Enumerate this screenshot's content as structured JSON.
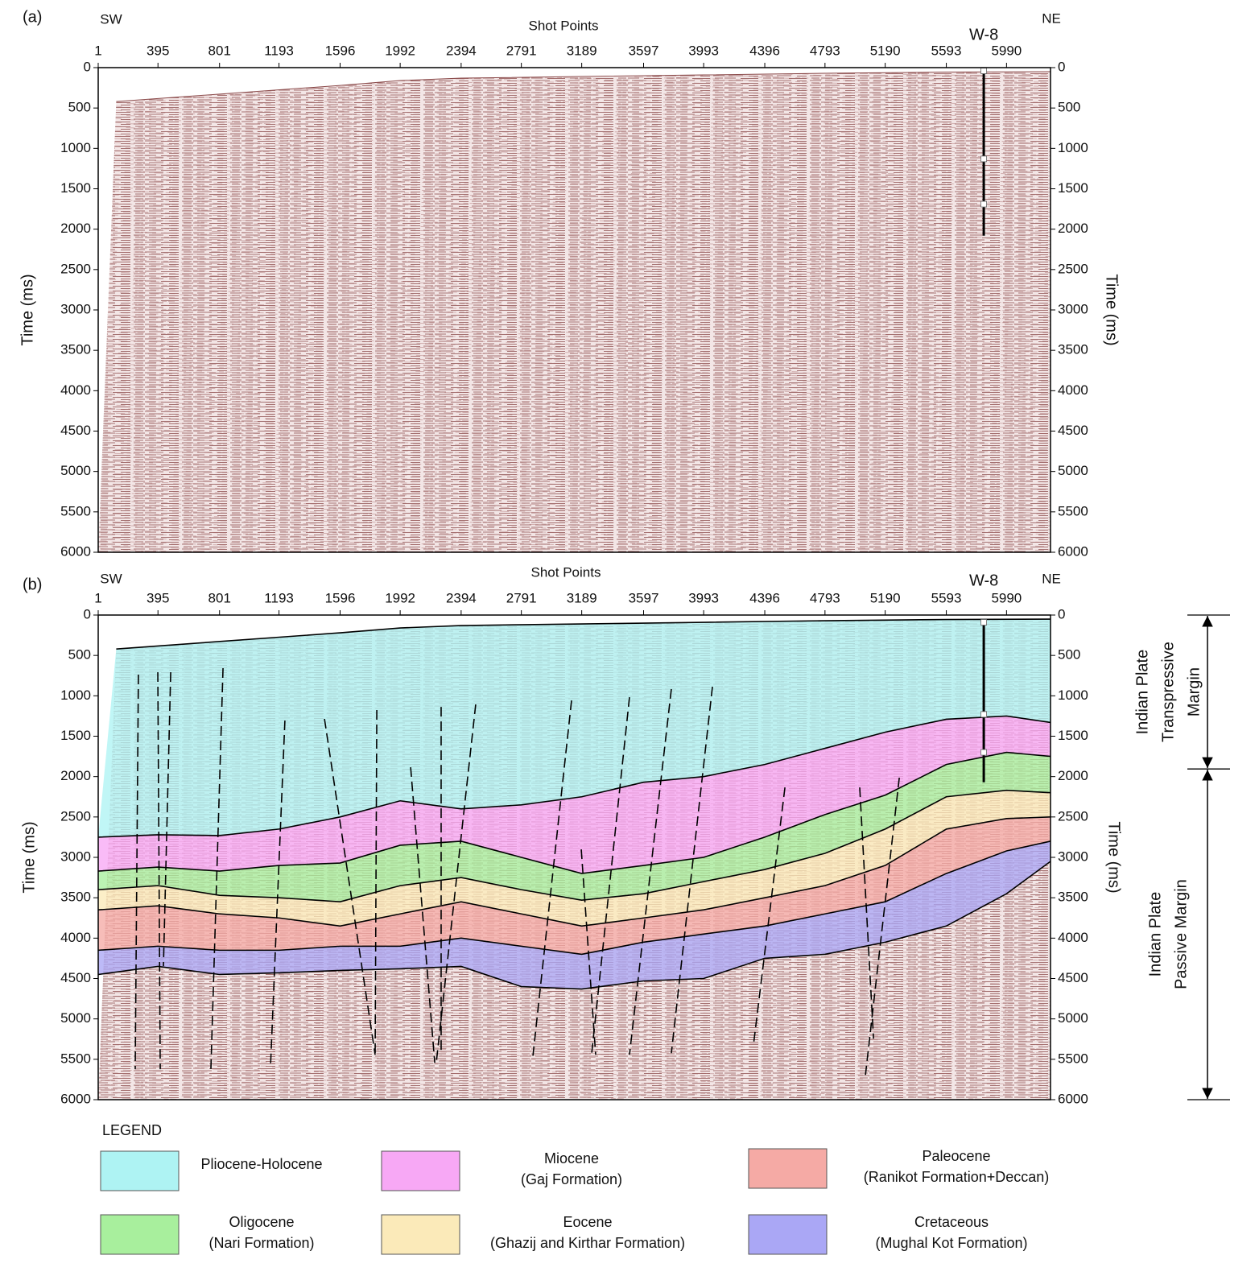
{
  "chart_data": [
    {
      "type": "seismic-section",
      "panel_label": "(a)",
      "left_label": "SW",
      "right_label": "NE",
      "x_label": "Shot Points",
      "y_label": "Time (ms)",
      "y2_label": "Time (ms)",
      "xlim": [
        1,
        6280
      ],
      "xticks": [
        1,
        395,
        801,
        1193,
        1596,
        1992,
        2394,
        2791,
        3189,
        3597,
        3993,
        4396,
        4793,
        5190,
        5593,
        5990
      ],
      "ylim": [
        0,
        6000
      ],
      "y_inverted": true,
      "yticks": [
        0,
        500,
        1000,
        1500,
        2000,
        2500,
        3000,
        3500,
        4000,
        4500,
        5000,
        5500,
        6000
      ],
      "y2ticks": [
        0,
        500,
        1000,
        1500,
        2000,
        2500,
        3000,
        3500,
        4000,
        4500,
        5000,
        5500,
        6000
      ],
      "seabed": {
        "x": [
          120,
          1596,
          1992,
          2394,
          3189,
          3993,
          4793,
          5593,
          6280
        ],
        "values": [
          420,
          220,
          160,
          130,
          110,
          90,
          70,
          55,
          50
        ]
      },
      "well": {
        "name": "W-8",
        "x": 5840,
        "top": 40,
        "bottom": 2080,
        "markers": [
          40,
          1130,
          1690
        ]
      }
    },
    {
      "type": "seismic-section",
      "panel_label": "(b)",
      "left_label": "SW",
      "right_label": "NE",
      "x_label": "Shot Points",
      "y_label": "Time (ms)",
      "y2_label": "Time (ms)",
      "xlim": [
        1,
        6280
      ],
      "xticks": [
        1,
        395,
        801,
        1193,
        1596,
        1992,
        2394,
        2791,
        3189,
        3597,
        3993,
        4396,
        4793,
        5190,
        5593,
        5990
      ],
      "ylim": [
        0,
        6000
      ],
      "y_inverted": true,
      "yticks": [
        0,
        500,
        1000,
        1500,
        2000,
        2500,
        3000,
        3500,
        4000,
        4500,
        5000,
        5500,
        6000
      ],
      "y2ticks": [
        0,
        500,
        1000,
        1500,
        2000,
        2500,
        3000,
        3500,
        4000,
        4500,
        5000,
        5500,
        6000
      ],
      "seabed": {
        "x": [
          120,
          1596,
          1992,
          2394,
          3189,
          3993,
          4793,
          5593,
          6280
        ],
        "values": [
          420,
          220,
          160,
          130,
          110,
          90,
          70,
          55,
          50
        ]
      },
      "well": {
        "name": "W-8",
        "x": 5840,
        "top": 60,
        "bottom": 2070,
        "markers": [
          90,
          1230,
          1700
        ]
      },
      "horizon_x": [
        1,
        395,
        801,
        1193,
        1596,
        1992,
        2394,
        2791,
        3189,
        3597,
        3993,
        4396,
        4793,
        5190,
        5593,
        5990,
        6280
      ],
      "horizons": [
        [
          2750,
          2720,
          2730,
          2650,
          2500,
          2300,
          2400,
          2350,
          2250,
          2070,
          2000,
          1850,
          1650,
          1450,
          1290,
          1250,
          1330
        ],
        [
          3170,
          3120,
          3170,
          3100,
          3070,
          2850,
          2800,
          3000,
          3200,
          3100,
          3000,
          2750,
          2470,
          2230,
          1850,
          1700,
          1750
        ],
        [
          3400,
          3350,
          3470,
          3500,
          3550,
          3350,
          3250,
          3400,
          3530,
          3450,
          3300,
          3150,
          2950,
          2650,
          2250,
          2170,
          2200
        ],
        [
          3650,
          3600,
          3700,
          3750,
          3850,
          3700,
          3550,
          3700,
          3850,
          3750,
          3650,
          3500,
          3350,
          3100,
          2650,
          2520,
          2500
        ],
        [
          4150,
          4100,
          4150,
          4150,
          4100,
          4100,
          4000,
          4100,
          4200,
          4050,
          3950,
          3850,
          3700,
          3550,
          3200,
          2920,
          2800
        ],
        [
          4450,
          4350,
          4450,
          4430,
          4400,
          4380,
          4350,
          4600,
          4630,
          4530,
          4500,
          4250,
          4200,
          4050,
          3850,
          3450,
          3050
        ]
      ],
      "faults": [
        {
          "x": [
            266,
            245
          ],
          "t": [
            738,
            5623
          ]
        },
        {
          "x": [
            394,
            410
          ],
          "t": [
            708,
            5623
          ]
        },
        {
          "x": [
            479,
            431
          ],
          "t": [
            708,
            4347
          ]
        },
        {
          "x": [
            824,
            744
          ],
          "t": [
            658,
            5623
          ]
        },
        {
          "x": [
            1232,
            1137
          ],
          "t": [
            1306,
            5593
          ]
        },
        {
          "x": [
            1493,
            1827
          ],
          "t": [
            1286,
            5444
          ]
        },
        {
          "x": [
            1838,
            1827
          ],
          "t": [
            1176,
            5444
          ]
        },
        {
          "x": [
            2061,
            2220
          ],
          "t": [
            1884,
            5543
          ]
        },
        {
          "x": [
            2262,
            2262
          ],
          "t": [
            1137,
            5444
          ]
        },
        {
          "x": [
            2490,
            2230
          ],
          "t": [
            1107,
            5543
          ]
        },
        {
          "x": [
            3122,
            2867
          ],
          "t": [
            1057,
            5464
          ]
        },
        {
          "x": [
            3186,
            3281
          ],
          "t": [
            2901,
            5444
          ]
        },
        {
          "x": [
            3504,
            3255
          ],
          "t": [
            1017,
            5424
          ]
        },
        {
          "x": [
            3780,
            3504
          ],
          "t": [
            917,
            5444
          ]
        },
        {
          "x": [
            4051,
            3780
          ],
          "t": [
            887,
            5424
          ]
        },
        {
          "x": [
            4529,
            4322
          ],
          "t": [
            2134,
            5314
          ]
        },
        {
          "x": [
            5022,
            5113
          ],
          "t": [
            2134,
            5244
          ]
        },
        {
          "x": [
            5283,
            5060
          ],
          "t": [
            2014,
            5693
          ]
        }
      ],
      "margins": [
        {
          "lines": [
            "Indian Plate",
            "Transpressive",
            "Margin"
          ],
          "from": 0,
          "to": 1905
        },
        {
          "lines": [
            "Indian Plate",
            "Passive Margin"
          ],
          "from": 1905,
          "to": 6000
        }
      ],
      "legend_title": "LEGEND",
      "units": [
        {
          "name": "Pliocene-Holocene",
          "color": "#aef3f3"
        },
        {
          "name": "Miocene",
          "subtitle": "(Gaj Formation)",
          "color": "#f7a8f5"
        },
        {
          "name": "Oligocene",
          "subtitle": "(Nari Formation)",
          "color": "#a8ef9d"
        },
        {
          "name": "Eocene",
          "subtitle": "(Ghazij and Kirthar Formation)",
          "color": "#fbeab9"
        },
        {
          "name": "Paleocene",
          "subtitle": "(Ranikot Formation+Deccan)",
          "color": "#f5aaa5"
        },
        {
          "name": "Cretaceous",
          "subtitle": "(Mughal Kot Formation)",
          "color": "#aaa7f5"
        }
      ]
    }
  ]
}
